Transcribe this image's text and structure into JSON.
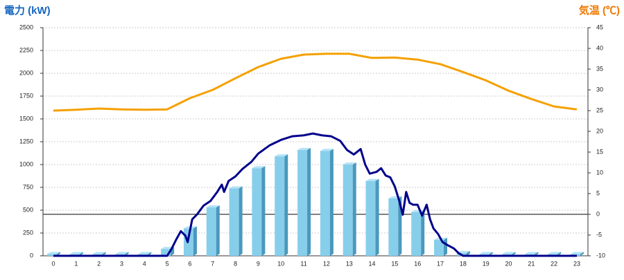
{
  "chart_data": {
    "type": "bar",
    "y_label": "電力 (kW)",
    "y2_label": "気温 (℃)",
    "categories": [
      "0",
      "1",
      "2",
      "3",
      "4",
      "5",
      "6",
      "7",
      "8",
      "9",
      "10",
      "11",
      "12",
      "13",
      "14",
      "15",
      "16",
      "17",
      "18",
      "19",
      "20",
      "21",
      "22",
      "23"
    ],
    "ylim": [
      0,
      2500
    ],
    "yticks": [
      0,
      250,
      500,
      750,
      1000,
      1250,
      1500,
      1750,
      2000,
      2250,
      2500
    ],
    "y2lim": [
      -10,
      45
    ],
    "y2ticks": [
      -10,
      -5,
      0,
      5,
      10,
      15,
      20,
      25,
      30,
      35,
      40,
      45
    ],
    "grid": true,
    "series": [
      {
        "type": "bar",
        "color": "#87ceeb",
        "values": [
          20,
          20,
          20,
          20,
          20,
          75,
          300,
          530,
          740,
          960,
          1090,
          1160,
          1150,
          1000,
          820,
          630,
          480,
          175,
          30,
          20,
          20,
          20,
          20,
          20
        ]
      },
      {
        "type": "line",
        "axis": "y2",
        "color": "#f5a000",
        "values": [
          25,
          25.2,
          25.5,
          25.3,
          25.2,
          25.3,
          28,
          30,
          32.8,
          35.5,
          37.5,
          38.5,
          38.7,
          38.7,
          37.7,
          37.8,
          37.3,
          36.2,
          34.3,
          32.3,
          29.8,
          27.8,
          26,
          25.3
        ]
      },
      {
        "type": "line",
        "color": "#00008b",
        "x": [
          0,
          4.8,
          5.0,
          5.2,
          5.4,
          5.6,
          5.8,
          5.9,
          6.1,
          6.3,
          6.6,
          6.9,
          7.2,
          7.4,
          7.5,
          7.7,
          8.0,
          8.3,
          8.7,
          9.0,
          9.5,
          10.0,
          10.5,
          11.0,
          11.4,
          11.8,
          12.2,
          12.6,
          12.9,
          13.2,
          13.5,
          13.7,
          13.9,
          14.2,
          14.4,
          14.6,
          14.8,
          15.0,
          15.2,
          15.35,
          15.5,
          15.65,
          15.8,
          16.0,
          16.2,
          16.4,
          16.55,
          16.7,
          16.9,
          17.1,
          17.3,
          17.6,
          17.8,
          18.0,
          23
        ],
        "values": [
          0,
          0,
          0,
          80,
          180,
          270,
          220,
          150,
          400,
          450,
          550,
          600,
          700,
          780,
          700,
          820,
          870,
          950,
          1030,
          1120,
          1210,
          1270,
          1310,
          1320,
          1340,
          1320,
          1310,
          1260,
          1160,
          1110,
          1170,
          1000,
          900,
          920,
          960,
          880,
          860,
          760,
          600,
          450,
          700,
          580,
          560,
          560,
          440,
          560,
          400,
          300,
          240,
          150,
          120,
          80,
          30,
          0,
          0
        ]
      }
    ]
  }
}
